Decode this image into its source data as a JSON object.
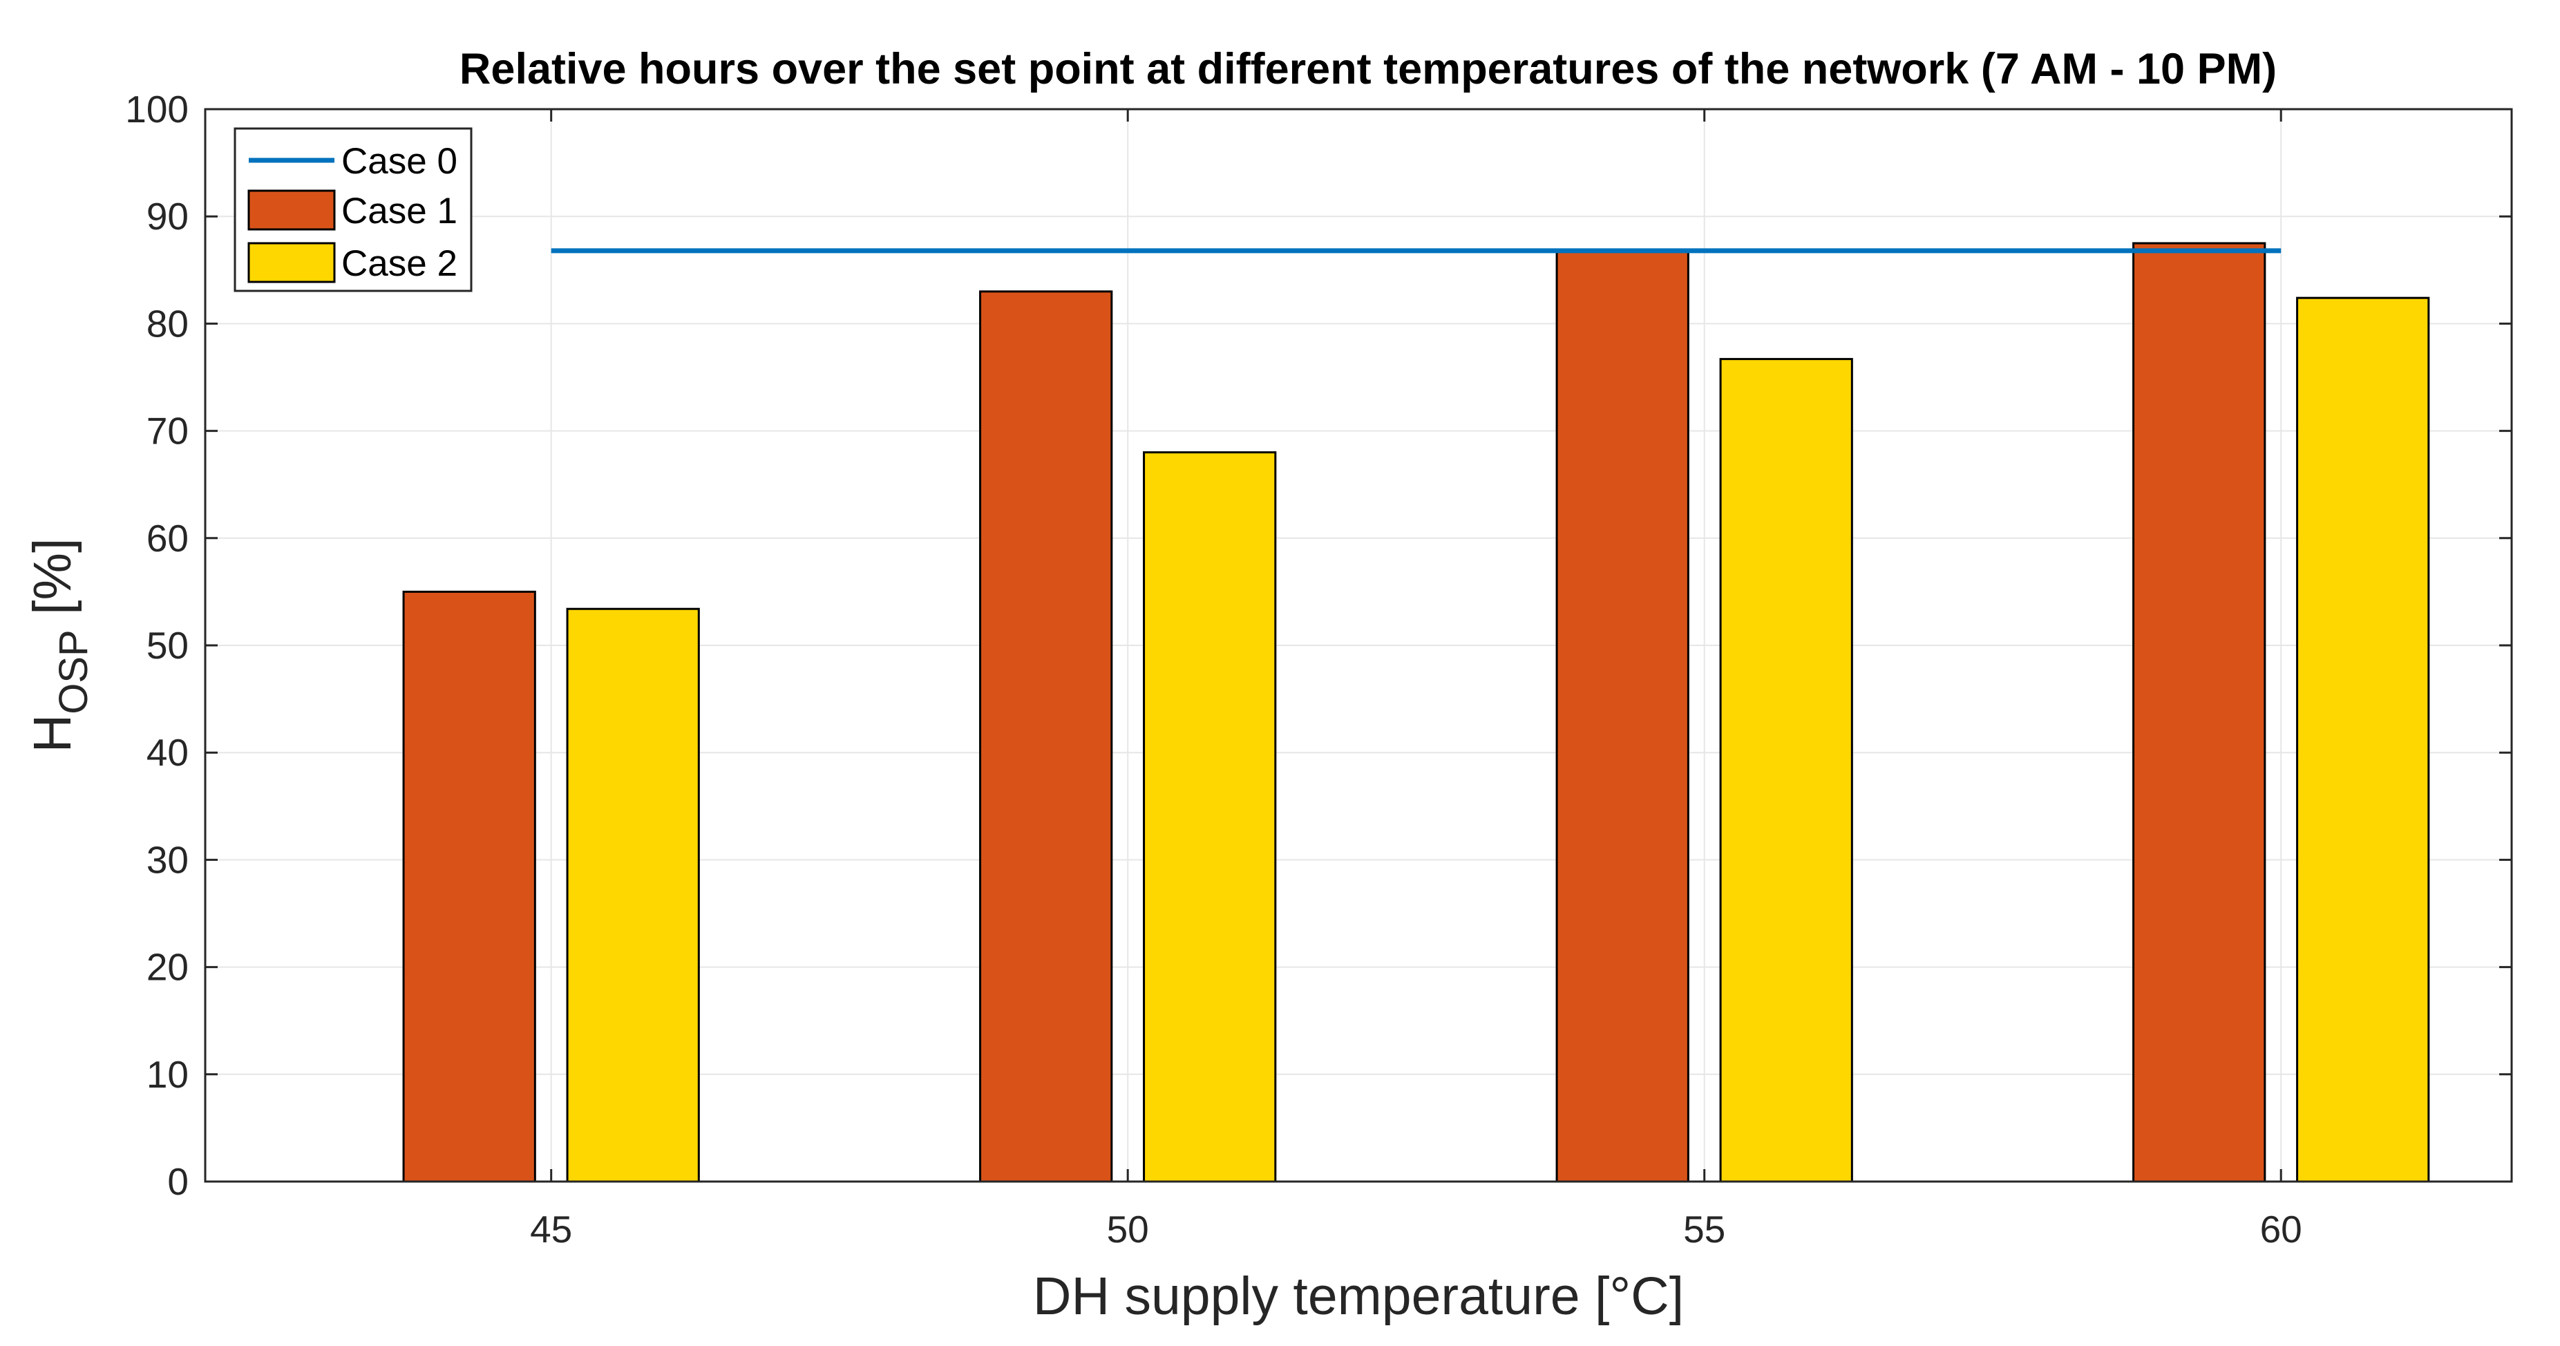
{
  "chart_data": {
    "type": "bar",
    "title": "Relative hours over the set point at different temperatures of the network (7 AM - 10 PM)",
    "xlabel": "DH supply temperature [°C]",
    "ylabel_main": "H",
    "ylabel_sub": "OSP",
    "ylabel_unit": " [%]",
    "categories": [
      "45",
      "50",
      "55",
      "60"
    ],
    "x": [
      45,
      50,
      55,
      60
    ],
    "xlim": [
      42,
      62
    ],
    "ylim": [
      0,
      100
    ],
    "yticks": [
      0,
      10,
      20,
      30,
      40,
      50,
      60,
      70,
      80,
      90,
      100
    ],
    "grid": true,
    "legend_position": "top-left",
    "series": [
      {
        "name": "Case 0",
        "kind": "line",
        "color": "#0072BD",
        "x": [
          45,
          60
        ],
        "values": [
          86.8,
          86.8
        ]
      },
      {
        "name": "Case 1",
        "kind": "bar",
        "color": "#D95319",
        "values": [
          55,
          83,
          86.8,
          87.5
        ]
      },
      {
        "name": "Case 2",
        "kind": "bar",
        "color": "#FFD700",
        "values": [
          53.4,
          68,
          76.7,
          82.4
        ]
      }
    ]
  }
}
